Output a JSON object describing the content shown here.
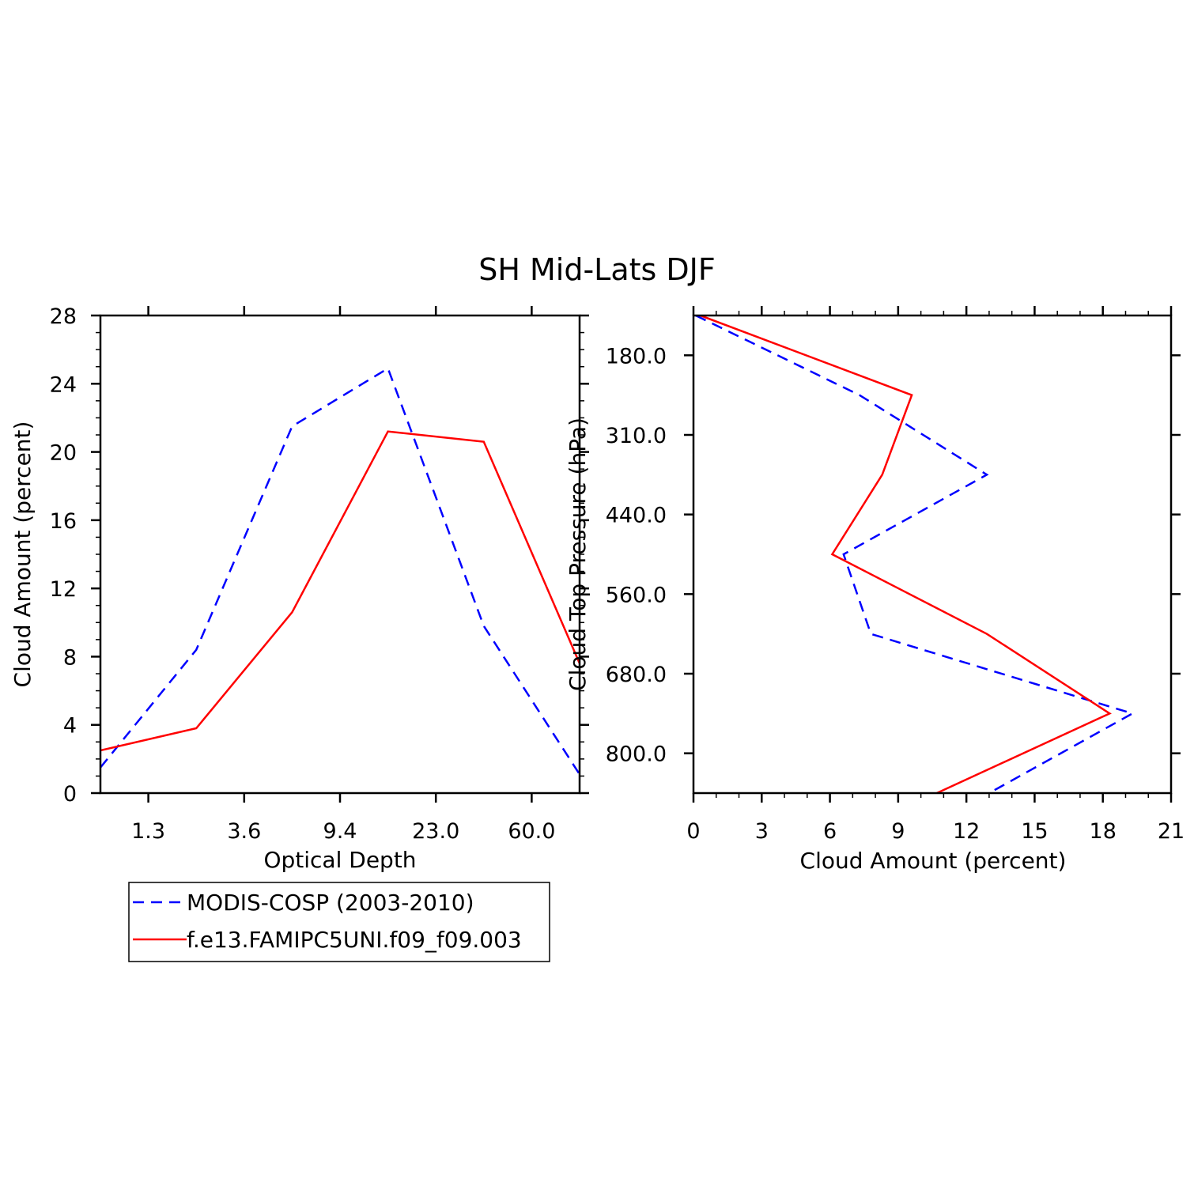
{
  "title": "SH Mid-Lats DJF",
  "colors": {
    "series1": "#0000ff",
    "series2": "#ff0000",
    "axis": "#000000"
  },
  "legend": {
    "placement": "bottom-left",
    "entries": [
      {
        "label": "MODIS-COSP (2003-2010)",
        "color": "#0000ff",
        "style": "dashed"
      },
      {
        "label": "f.e13.FAMIPC5UNI.f09_f09.003",
        "color": "#ff0000",
        "style": "solid"
      }
    ]
  },
  "chart_data": [
    {
      "type": "line",
      "orientation": "vertical",
      "xlabel": "Optical Depth",
      "ylabel": "Cloud Amount (percent)",
      "xlim": [
        0,
        5
      ],
      "ylim": [
        0,
        28
      ],
      "x_ticks": [
        {
          "pos": 0.5,
          "label": "1.3"
        },
        {
          "pos": 1.5,
          "label": "3.6"
        },
        {
          "pos": 2.5,
          "label": "9.4"
        },
        {
          "pos": 3.5,
          "label": "23.0"
        },
        {
          "pos": 4.5,
          "label": "60.0"
        }
      ],
      "y_ticks": [
        0,
        4,
        8,
        12,
        16,
        20,
        24,
        28
      ],
      "y_minor_step": 1,
      "x": [
        0,
        1,
        2,
        3,
        4,
        5
      ],
      "series": [
        {
          "name": "MODIS-COSP (2003-2010)",
          "color": "#0000ff",
          "style": "dashed",
          "values": [
            1.5,
            8.4,
            21.5,
            24.9,
            9.8,
            1.1
          ]
        },
        {
          "name": "f.e13.FAMIPC5UNI.f09_f09.003",
          "color": "#ff0000",
          "style": "solid",
          "values": [
            2.5,
            3.8,
            10.6,
            21.2,
            20.6,
            7.6
          ]
        }
      ],
      "grid": false
    },
    {
      "type": "line",
      "orientation": "horizontal",
      "xlabel": "Cloud Amount (percent)",
      "ylabel": "Cloud Top Pressure (hPa)",
      "xlim": [
        0,
        21
      ],
      "ylim": [
        0,
        6
      ],
      "x_ticks": [
        0,
        3,
        6,
        9,
        12,
        15,
        18,
        21
      ],
      "x_minor_step": 1,
      "y_ticks": [
        {
          "pos": 0.5,
          "label": "180.0"
        },
        {
          "pos": 1.5,
          "label": "310.0"
        },
        {
          "pos": 2.5,
          "label": "440.0"
        },
        {
          "pos": 3.5,
          "label": "560.0"
        },
        {
          "pos": 4.5,
          "label": "680.0"
        },
        {
          "pos": 5.5,
          "label": "800.0"
        }
      ],
      "y": [
        0,
        1,
        2,
        3,
        4,
        5,
        6
      ],
      "series": [
        {
          "name": "MODIS-COSP (2003-2010)",
          "color": "#0000ff",
          "style": "dashed",
          "values": [
            0.1,
            7.3,
            12.9,
            6.6,
            7.8,
            19.3,
            13.0
          ]
        },
        {
          "name": "f.e13.FAMIPC5UNI.f09_f09.003",
          "color": "#ff0000",
          "style": "solid",
          "values": [
            0.3,
            9.6,
            8.3,
            6.1,
            12.9,
            18.3,
            10.7
          ]
        }
      ],
      "grid": false
    }
  ]
}
